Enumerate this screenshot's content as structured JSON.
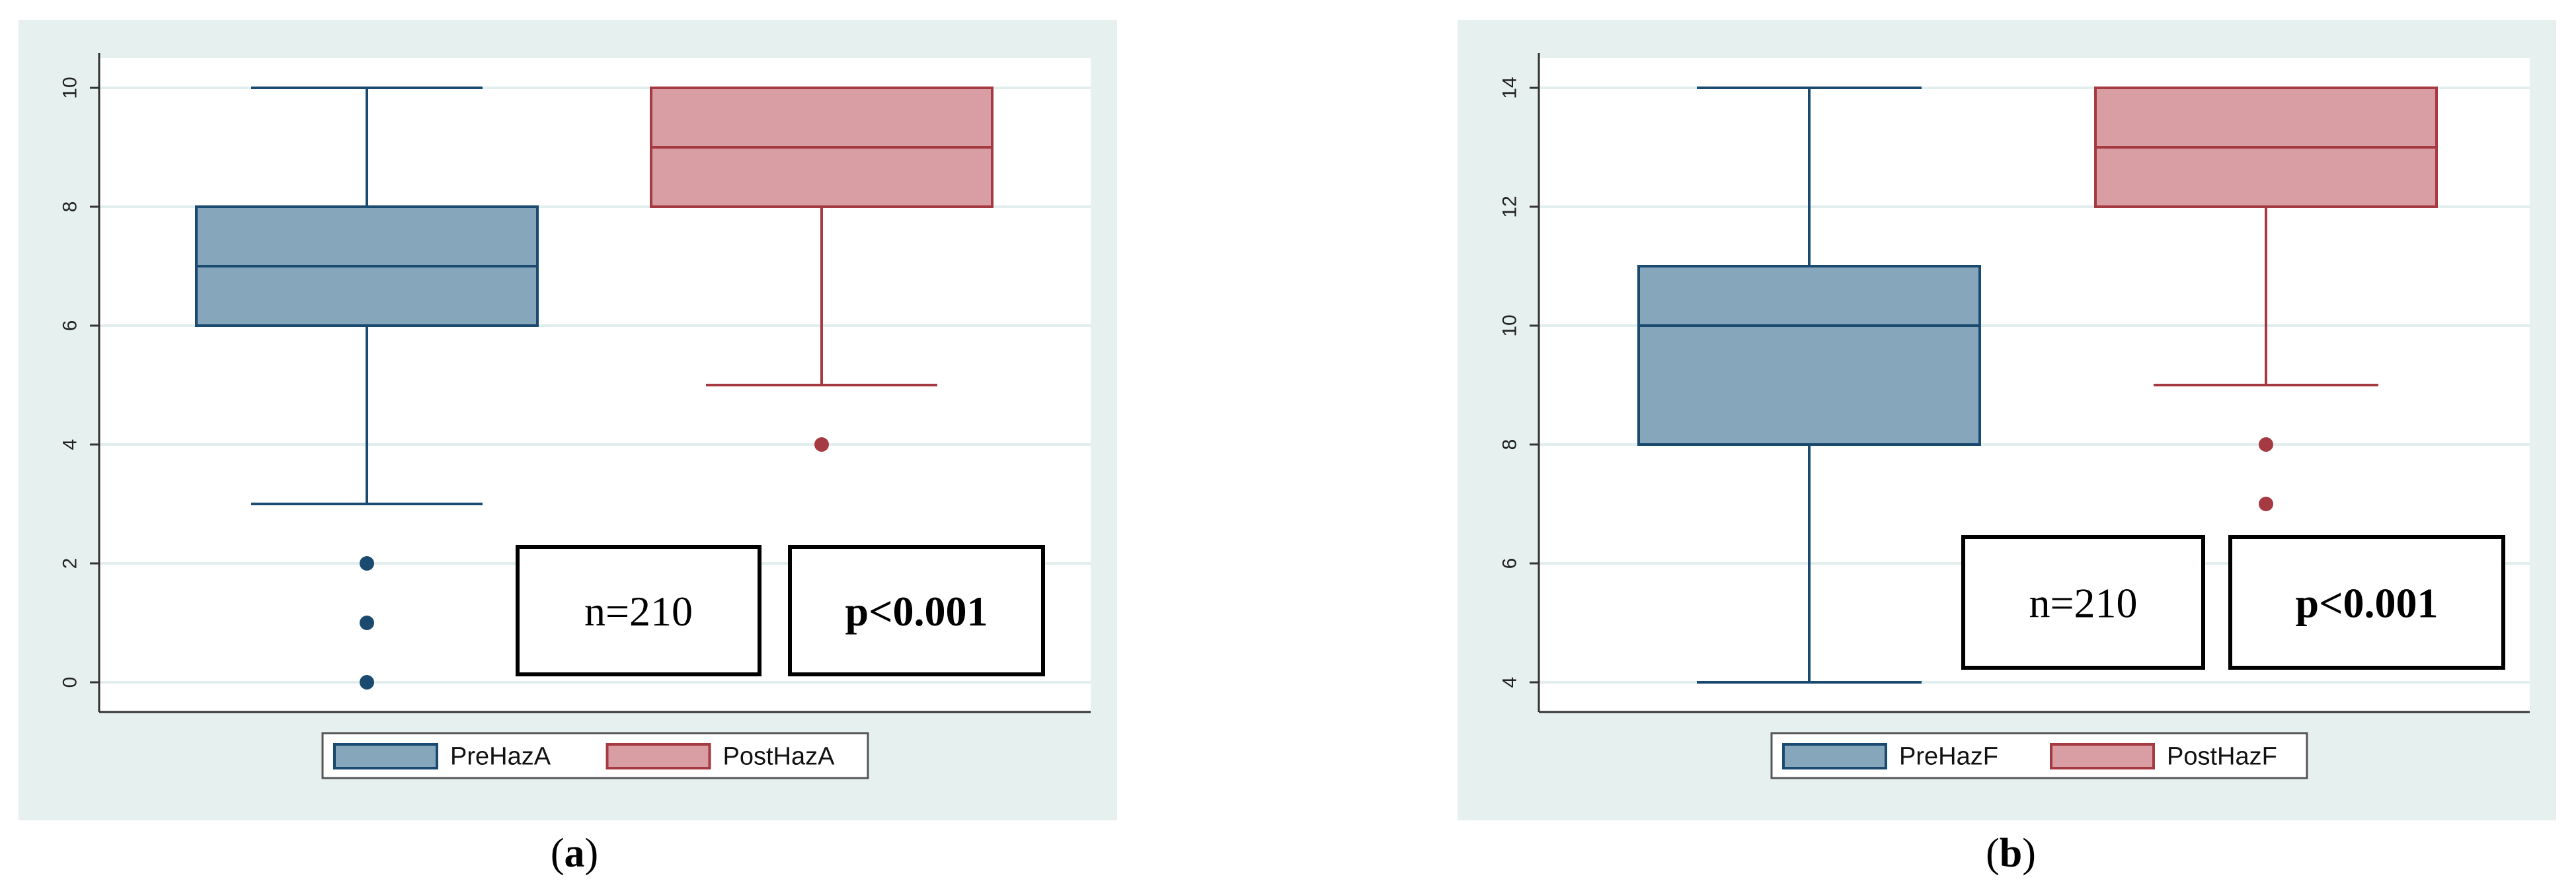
{
  "colors": {
    "panel_background": "#e6f0ef",
    "plot_background": "#ffffff",
    "grid": "#e2eeed",
    "axis": "#333333",
    "pre_fill": "#86a6bc",
    "pre_stroke": "#1b4a70",
    "post_fill": "#d89ea3",
    "post_stroke": "#a63a42"
  },
  "chart_data": [
    {
      "type": "box",
      "panel_label": "a",
      "ylim": [
        -0.5,
        10.5
      ],
      "yticks": [
        0,
        2,
        4,
        6,
        8,
        10
      ],
      "ytick_labels": [
        "0",
        "2",
        "4",
        "6",
        "8",
        "10"
      ],
      "grid": true,
      "legend_position": "bottom",
      "series": [
        {
          "name": "PreHazA",
          "color_key": "pre",
          "min": 3,
          "q1": 6,
          "median": 7,
          "q3": 8,
          "max": 10,
          "outliers": [
            2,
            1,
            0
          ]
        },
        {
          "name": "PostHazA",
          "color_key": "post",
          "min": 5,
          "q1": 8,
          "median": 9,
          "q3": 10,
          "max": 10,
          "outliers": [
            4
          ]
        }
      ],
      "annotations": [
        {
          "text": "n=210",
          "bold": false
        },
        {
          "text": "p<0.001",
          "bold": true
        }
      ]
    },
    {
      "type": "box",
      "panel_label": "b",
      "ylim": [
        3.5,
        14.5
      ],
      "yticks": [
        4,
        6,
        8,
        10,
        12,
        14
      ],
      "ytick_labels": [
        "4",
        "6",
        "8",
        "10",
        "12",
        "14"
      ],
      "grid": true,
      "legend_position": "bottom",
      "series": [
        {
          "name": "PreHazF",
          "color_key": "pre",
          "min": 4,
          "q1": 8,
          "median": 10,
          "q3": 11,
          "max": 14,
          "outliers": []
        },
        {
          "name": "PostHazF",
          "color_key": "post",
          "min": 9,
          "q1": 12,
          "median": 13,
          "q3": 14,
          "max": 14,
          "outliers": [
            8,
            7
          ]
        }
      ],
      "annotations": [
        {
          "text": "n=210",
          "bold": false
        },
        {
          "text": "p<0.001",
          "bold": true
        }
      ]
    }
  ]
}
